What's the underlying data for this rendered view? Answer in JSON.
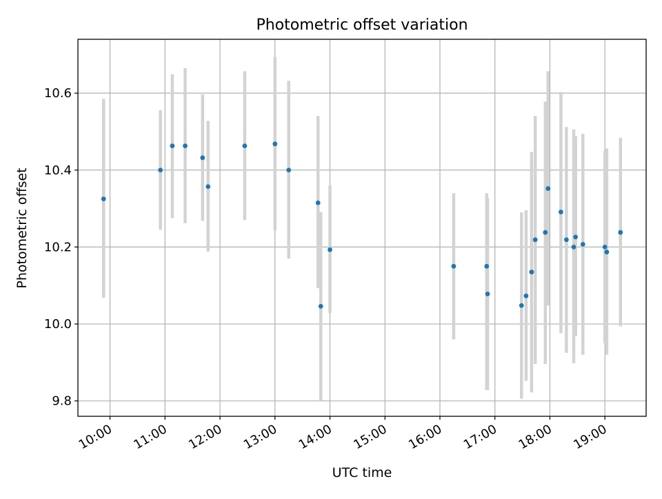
{
  "chart_data": {
    "type": "scatter",
    "title": "Photometric offset variation",
    "xlabel": "UTC time",
    "ylabel": "Photometric offset",
    "x_unit": "UTC time (HH:MM)",
    "xlim": [
      "09:25",
      "19:45"
    ],
    "ylim": [
      9.76,
      10.74
    ],
    "x_ticks": [
      "10:00",
      "11:00",
      "12:00",
      "13:00",
      "14:00",
      "15:00",
      "16:00",
      "17:00",
      "18:00",
      "19:00"
    ],
    "y_ticks": [
      "9.8",
      "10.0",
      "10.2",
      "10.4",
      "10.6"
    ],
    "grid": true,
    "colors": {
      "point": "#1f77b4",
      "errorbar": "#d3d3d3",
      "grid": "#b0b0b0",
      "axes": "#000000"
    },
    "points": [
      {
        "x": "09:53",
        "y": 10.325,
        "ylow": 10.068,
        "yhigh": 10.585
      },
      {
        "x": "10:55",
        "y": 10.4,
        "ylow": 10.245,
        "yhigh": 10.556
      },
      {
        "x": "11:08",
        "y": 10.463,
        "ylow": 10.275,
        "yhigh": 10.649
      },
      {
        "x": "11:22",
        "y": 10.463,
        "ylow": 10.262,
        "yhigh": 10.665
      },
      {
        "x": "11:41",
        "y": 10.432,
        "ylow": 10.268,
        "yhigh": 10.597
      },
      {
        "x": "11:47",
        "y": 10.357,
        "ylow": 10.188,
        "yhigh": 10.528
      },
      {
        "x": "12:27",
        "y": 10.463,
        "ylow": 10.27,
        "yhigh": 10.657
      },
      {
        "x": "13:00",
        "y": 10.468,
        "ylow": 10.243,
        "yhigh": 10.694
      },
      {
        "x": "13:15",
        "y": 10.4,
        "ylow": 10.17,
        "yhigh": 10.632
      },
      {
        "x": "13:47",
        "y": 10.315,
        "ylow": 10.093,
        "yhigh": 10.541
      },
      {
        "x": "13:50",
        "y": 10.046,
        "ylow": 9.8,
        "yhigh": 10.291
      },
      {
        "x": "14:00",
        "y": 10.193,
        "ylow": 10.028,
        "yhigh": 10.36
      },
      {
        "x": "16:15",
        "y": 10.15,
        "ylow": 9.96,
        "yhigh": 10.34
      },
      {
        "x": "16:51",
        "y": 10.15,
        "ylow": 9.828,
        "yhigh": 10.34
      },
      {
        "x": "16:52",
        "y": 10.078,
        "ylow": 9.828,
        "yhigh": 10.328
      },
      {
        "x": "17:29",
        "y": 10.048,
        "ylow": 9.806,
        "yhigh": 10.29
      },
      {
        "x": "17:34",
        "y": 10.073,
        "ylow": 9.852,
        "yhigh": 10.296
      },
      {
        "x": "17:40",
        "y": 10.135,
        "ylow": 9.822,
        "yhigh": 10.447
      },
      {
        "x": "17:44",
        "y": 10.219,
        "ylow": 9.896,
        "yhigh": 10.541
      },
      {
        "x": "17:55",
        "y": 10.238,
        "ylow": 9.896,
        "yhigh": 10.578
      },
      {
        "x": "17:58",
        "y": 10.352,
        "ylow": 10.048,
        "yhigh": 10.657
      },
      {
        "x": "18:12",
        "y": 10.291,
        "ylow": 9.976,
        "yhigh": 10.603
      },
      {
        "x": "18:18",
        "y": 10.219,
        "ylow": 9.925,
        "yhigh": 10.512
      },
      {
        "x": "18:26",
        "y": 10.2,
        "ylow": 9.898,
        "yhigh": 10.506
      },
      {
        "x": "18:28",
        "y": 10.226,
        "ylow": 9.968,
        "yhigh": 10.488
      },
      {
        "x": "18:36",
        "y": 10.207,
        "ylow": 9.92,
        "yhigh": 10.494
      },
      {
        "x": "19:00",
        "y": 10.2,
        "ylow": 9.95,
        "yhigh": 10.45
      },
      {
        "x": "19:02",
        "y": 10.187,
        "ylow": 9.92,
        "yhigh": 10.456
      },
      {
        "x": "19:17",
        "y": 10.238,
        "ylow": 9.994,
        "yhigh": 10.484
      }
    ]
  }
}
